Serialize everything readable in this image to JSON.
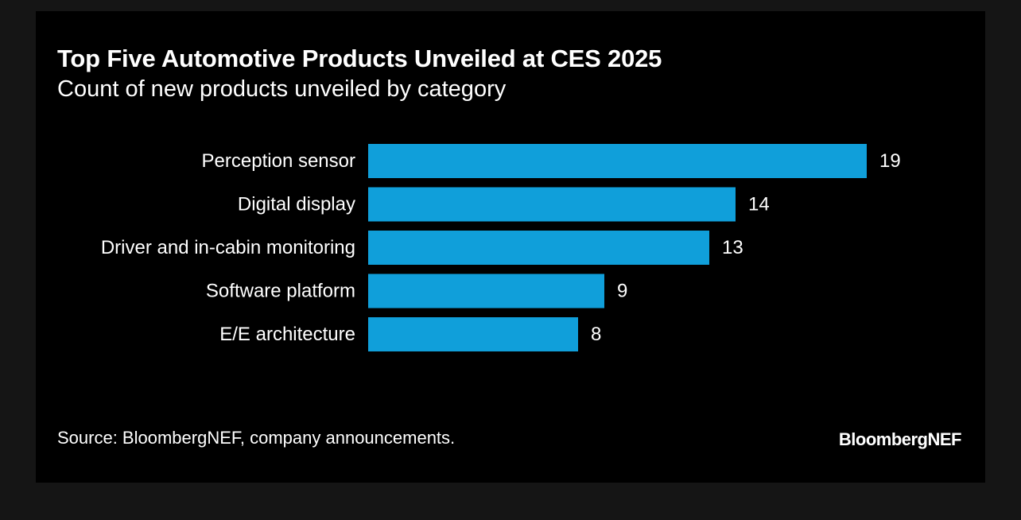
{
  "chart_data": {
    "type": "bar",
    "orientation": "horizontal",
    "title": "Top Five Automotive Products Unveiled at CES 2025",
    "subtitle": "Count of new products unveiled by category",
    "categories": [
      "Perception sensor",
      "Digital display",
      "Driver and in-cabin monitoring",
      "Software platform",
      "E/E architecture"
    ],
    "values": [
      19,
      14,
      13,
      9,
      8
    ],
    "data_labels": [
      "19",
      "14",
      "13",
      "9",
      "8"
    ],
    "xlim": [
      0,
      19
    ],
    "grid": false,
    "legend": "none",
    "bar_color": "#109fda"
  },
  "footer": {
    "source": "Source: BloombergNEF, company announcements.",
    "brand": "BloombergNEF"
  },
  "colors": {
    "page_background": "#151515",
    "card_background": "#000000",
    "text": "#ffffff"
  }
}
